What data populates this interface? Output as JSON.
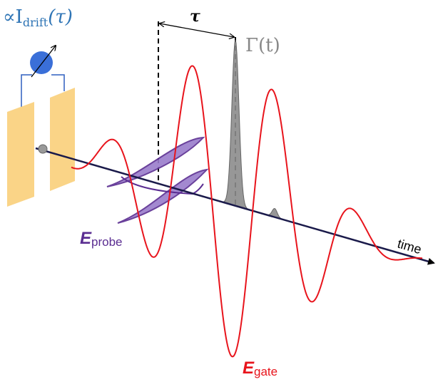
{
  "labels": {
    "drift_current": {
      "prefix": "∝I",
      "subscript": "drift",
      "suffix": "(τ)"
    },
    "delay": "τ",
    "gate_envelope": "Γ(t)",
    "probe": {
      "symbol": "E",
      "subscript": "probe"
    },
    "gate": {
      "symbol": "E",
      "subscript": "gate"
    },
    "axis": "time"
  }
}
